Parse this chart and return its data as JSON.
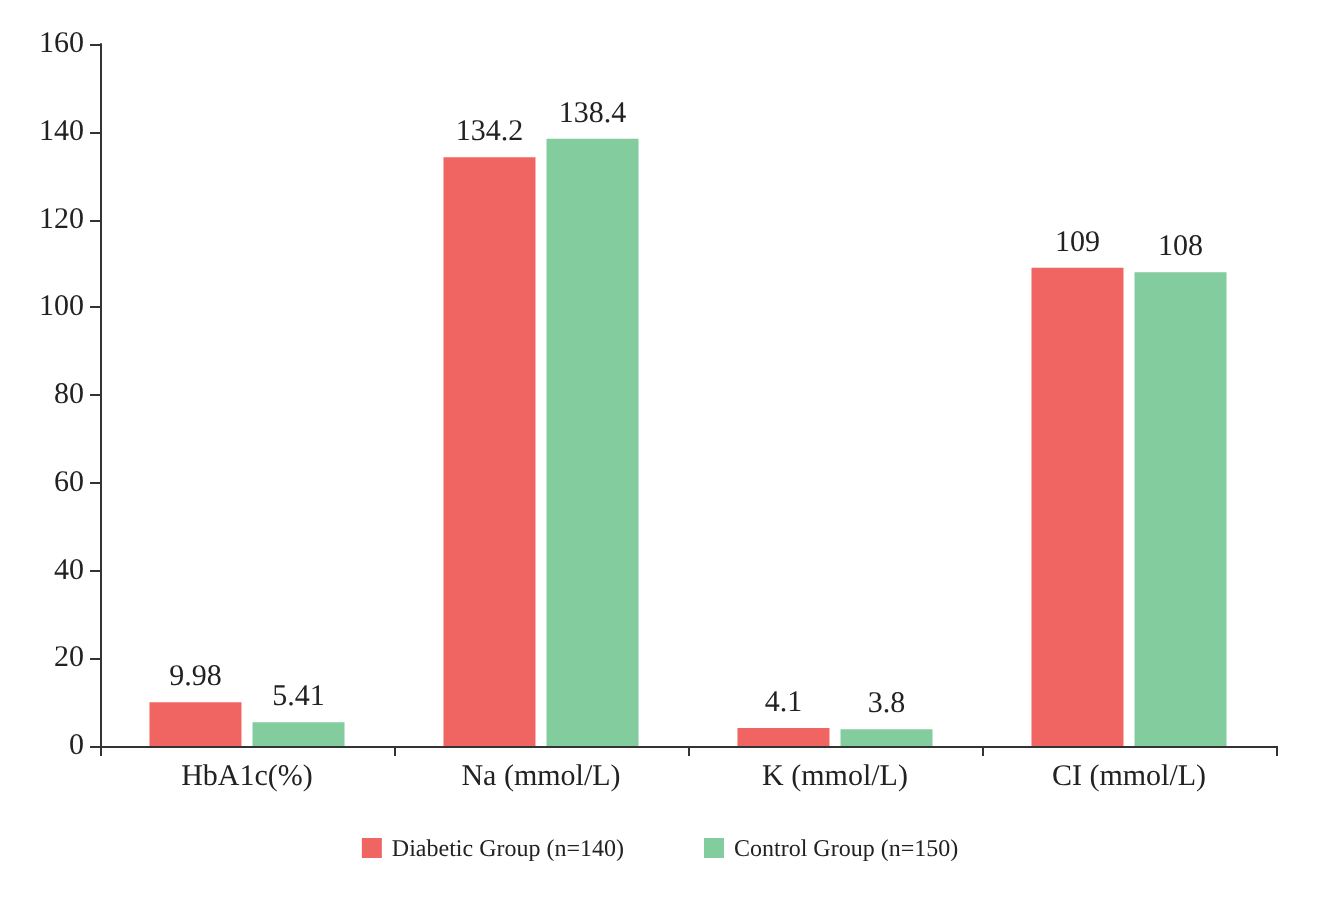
{
  "chart_data": {
    "type": "bar",
    "categories": [
      "HbA1c(%)",
      "Na (mmol/L)",
      "K (mmol/L)",
      "CI (mmol/L)"
    ],
    "series": [
      {
        "name": "Diabetic Group (n=140)",
        "color": "#f06462",
        "values": [
          9.98,
          134.2,
          4.1,
          109
        ]
      },
      {
        "name": "Control Group (n=150)",
        "color": "#82cc9e",
        "values": [
          5.41,
          138.4,
          3.8,
          108
        ]
      }
    ],
    "ylim": [
      0,
      160
    ],
    "yticks": [
      0,
      20,
      40,
      60,
      80,
      100,
      120,
      140,
      160
    ],
    "grid": false,
    "legend": "bottom",
    "data_labels": true
  }
}
